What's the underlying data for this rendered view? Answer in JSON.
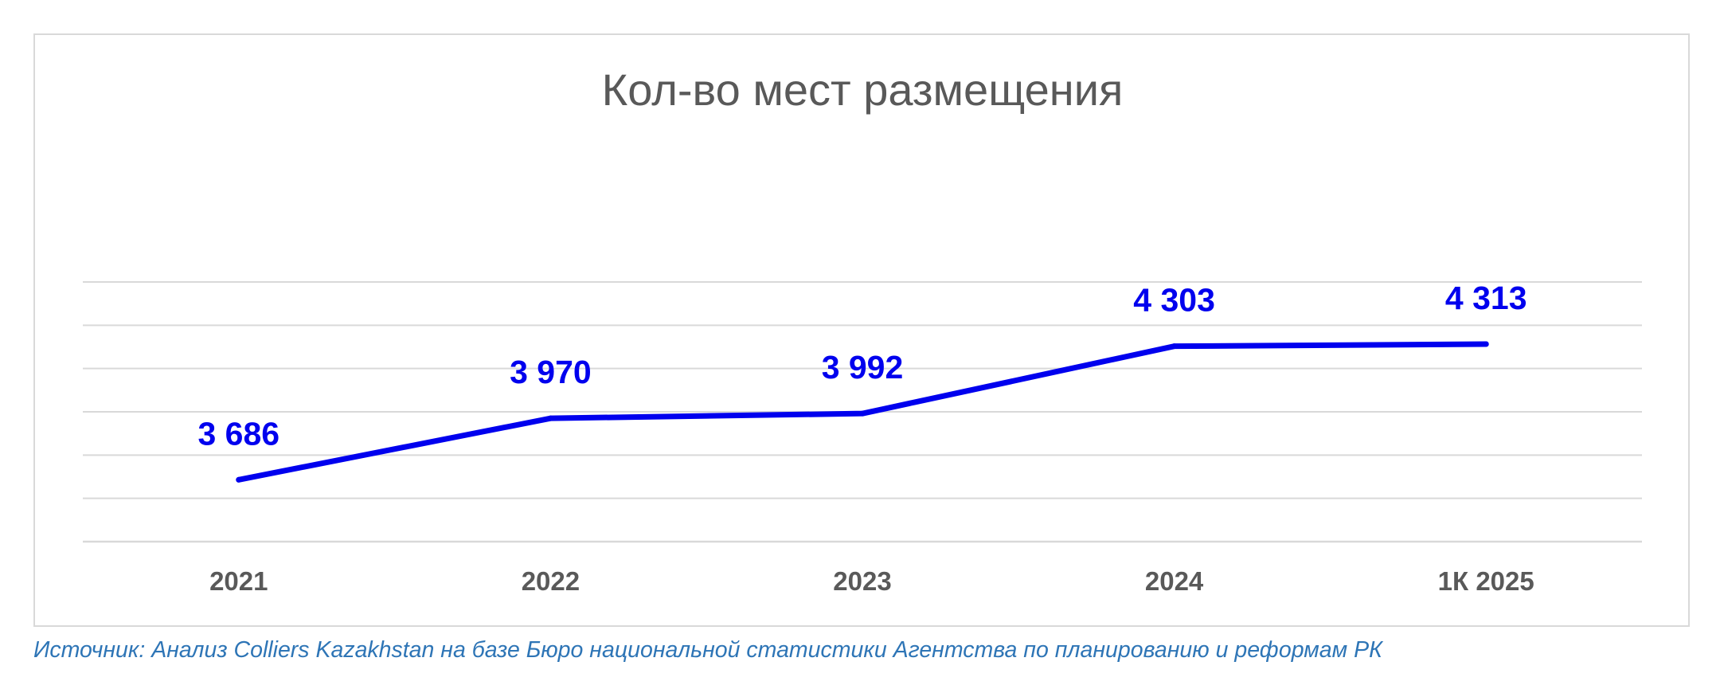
{
  "chart_data": {
    "type": "line",
    "title": "Кол-во мест размещения",
    "categories": [
      "2021",
      "2022",
      "2023",
      "2024",
      "1К 2025"
    ],
    "series": [
      {
        "values": [
          3686,
          3970,
          3992,
          4303,
          4313
        ],
        "labels": [
          "3 686",
          "3 970",
          "3 992",
          "4 303",
          "4 313"
        ]
      }
    ],
    "ylim": [
      3400,
      4600
    ],
    "grid": true,
    "legend": "none",
    "colors": {
      "line": "#0000ee",
      "label": "#0000ee",
      "grid": "#d9d9d9",
      "axis_text": "#595959",
      "title": "#595959"
    }
  },
  "source_note": "Источник: Анализ Colliers Kazakhstan на базе Бюро национальной статистики Агентства по планированию и реформам РК"
}
